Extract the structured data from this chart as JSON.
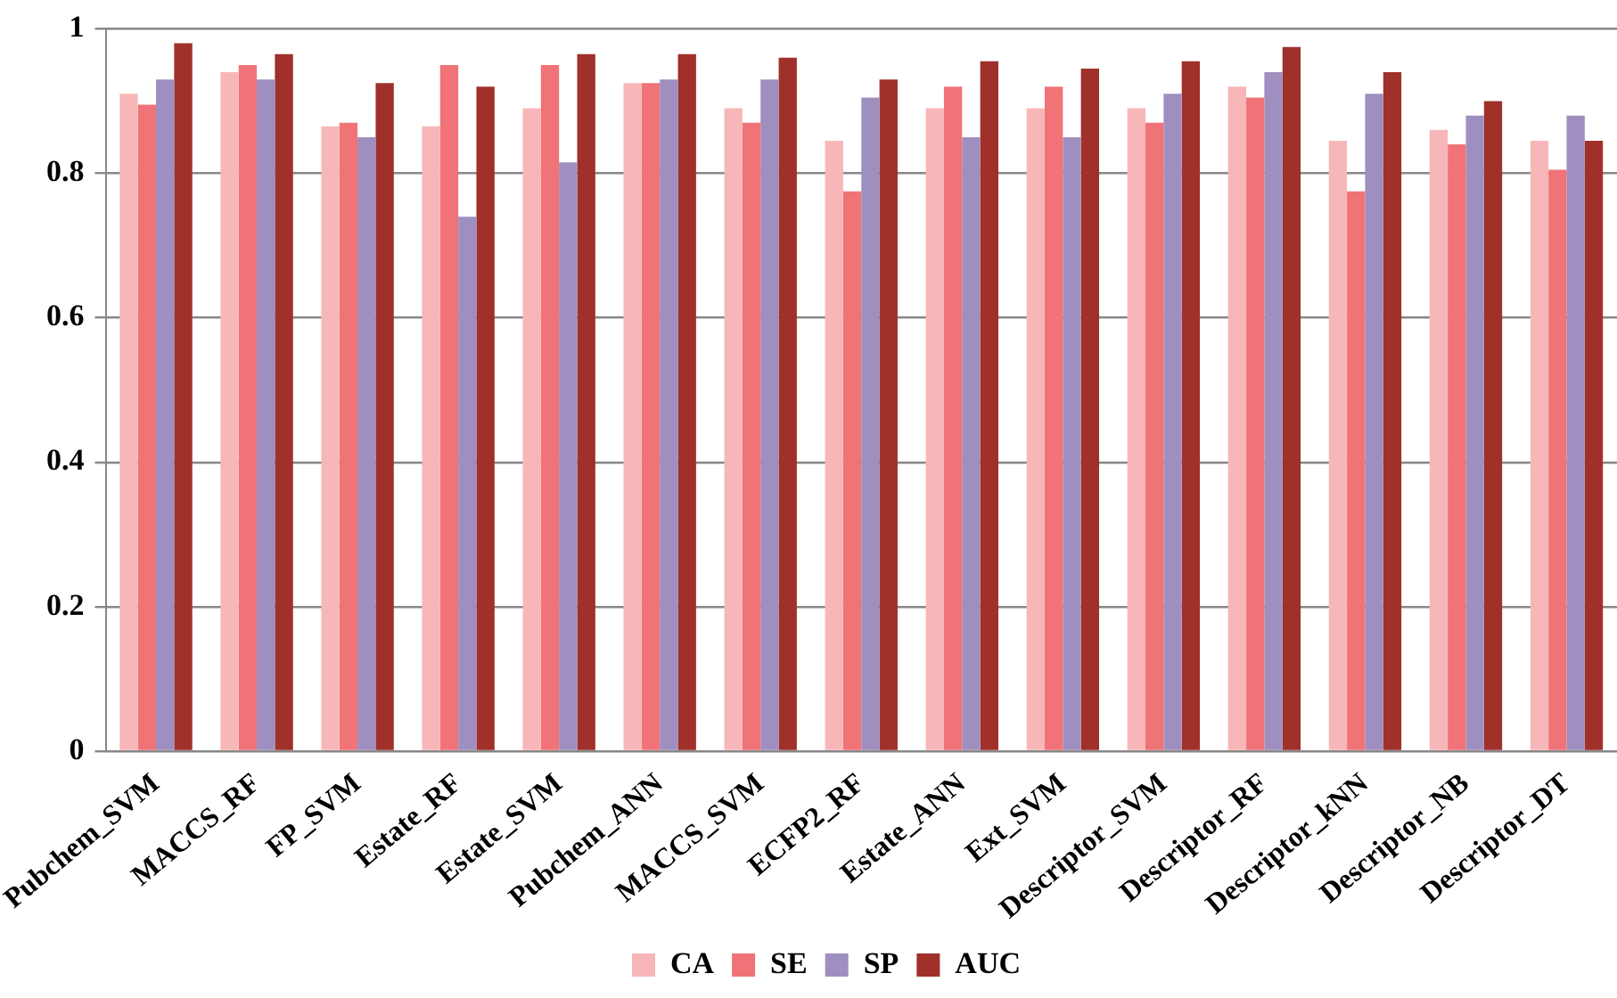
{
  "chart_data": {
    "type": "bar",
    "categories": [
      "Pubchem_SVM",
      "MACCS_RF",
      "FP_SVM",
      "Estate_RF",
      "Estate_SVM",
      "Pubchem_ANN",
      "MACCS_SVM",
      "ECFP2_RF",
      "Estate_ANN",
      "Ext_SVM",
      "Descriptor_SVM",
      "Descriptor_RF",
      "Descriptor_kNN",
      "Descriptor_NB",
      "Descriptor_DT"
    ],
    "series": [
      {
        "name": "CA",
        "color": "#f7b7b9",
        "values": [
          0.91,
          0.94,
          0.865,
          0.865,
          0.89,
          0.925,
          0.89,
          0.845,
          0.89,
          0.89,
          0.89,
          0.92,
          0.845,
          0.86,
          0.845
        ]
      },
      {
        "name": "SE",
        "color": "#f07377",
        "values": [
          0.895,
          0.95,
          0.87,
          0.95,
          0.95,
          0.925,
          0.87,
          0.775,
          0.92,
          0.92,
          0.87,
          0.905,
          0.775,
          0.84,
          0.805
        ]
      },
      {
        "name": "SP",
        "color": "#9e8fc0",
        "values": [
          0.93,
          0.93,
          0.85,
          0.74,
          0.815,
          0.93,
          0.93,
          0.905,
          0.85,
          0.85,
          0.91,
          0.94,
          0.91,
          0.88,
          0.88
        ]
      },
      {
        "name": "AUC",
        "color": "#a0302a",
        "values": [
          0.98,
          0.965,
          0.925,
          0.92,
          0.965,
          0.965,
          0.96,
          0.93,
          0.955,
          0.945,
          0.955,
          0.975,
          0.94,
          0.9,
          0.845
        ]
      }
    ],
    "ylim": [
      0,
      1
    ],
    "yticks": [
      0,
      {
        "value": 0.2,
        "label": "0.2"
      },
      {
        "value": 0.4,
        "label": "0.4"
      },
      {
        "value": 0.6,
        "label": "0.6"
      },
      {
        "value": 0.8,
        "label": "0.8"
      },
      1
    ],
    "grid": "y",
    "legend": "bottom"
  }
}
